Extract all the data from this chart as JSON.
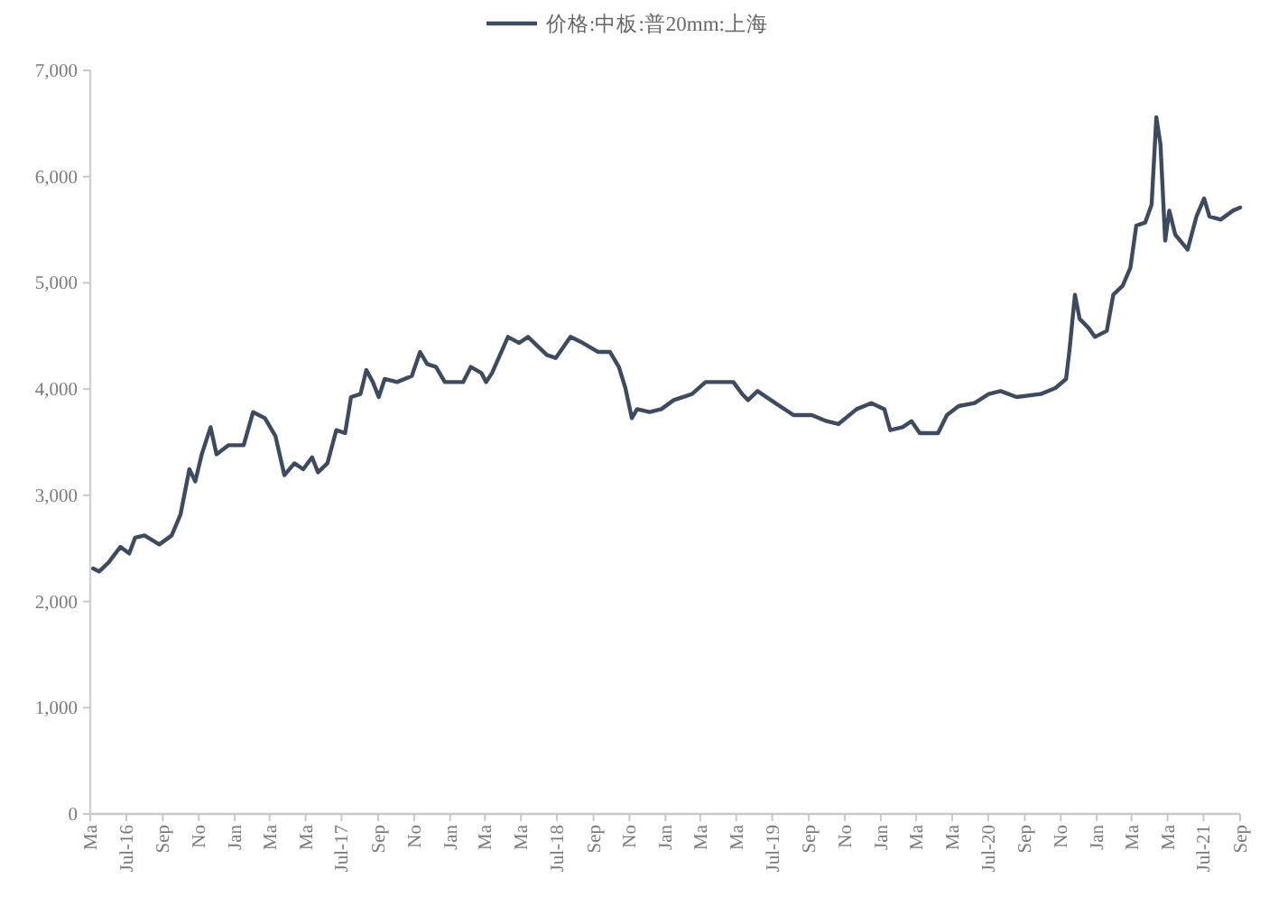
{
  "chart_data": {
    "type": "line",
    "legend": "top",
    "marker": "none",
    "line_style": "solid",
    "grid": false,
    "xlim": [
      "2016-05-01",
      "2021-09-01"
    ],
    "ylim": [
      0,
      7000
    ],
    "yticks": [
      {
        "value": 0,
        "label": "0"
      },
      {
        "value": 1000,
        "label": "1,000"
      },
      {
        "value": 2000,
        "label": "2,000"
      },
      {
        "value": 3000,
        "label": "3,000"
      },
      {
        "value": 4000,
        "label": "4,000"
      },
      {
        "value": 5000,
        "label": "5,000"
      },
      {
        "value": 6000,
        "label": "6,000"
      },
      {
        "value": 7000,
        "label": "7,000"
      }
    ],
    "xticks": [
      {
        "value": "2016-05-01",
        "label": "Ma"
      },
      {
        "value": "2016-07-01",
        "label": "Jul-16"
      },
      {
        "value": "2016-09-01",
        "label": "Sep"
      },
      {
        "value": "2016-11-01",
        "label": "No"
      },
      {
        "value": "2017-01-01",
        "label": "Jan"
      },
      {
        "value": "2017-03-01",
        "label": "Ma"
      },
      {
        "value": "2017-05-01",
        "label": "Ma"
      },
      {
        "value": "2017-07-01",
        "label": "Jul-17"
      },
      {
        "value": "2017-09-01",
        "label": "Sep"
      },
      {
        "value": "2017-11-01",
        "label": "No"
      },
      {
        "value": "2018-01-01",
        "label": "Jan"
      },
      {
        "value": "2018-03-01",
        "label": "Ma"
      },
      {
        "value": "2018-05-01",
        "label": "Ma"
      },
      {
        "value": "2018-07-01",
        "label": "Jul-18"
      },
      {
        "value": "2018-09-01",
        "label": "Sep"
      },
      {
        "value": "2018-11-01",
        "label": "No"
      },
      {
        "value": "2019-01-01",
        "label": "Jan"
      },
      {
        "value": "2019-03-01",
        "label": "Ma"
      },
      {
        "value": "2019-05-01",
        "label": "Ma"
      },
      {
        "value": "2019-07-01",
        "label": "Jul-19"
      },
      {
        "value": "2019-09-01",
        "label": "Sep"
      },
      {
        "value": "2019-11-01",
        "label": "No"
      },
      {
        "value": "2020-01-01",
        "label": "Jan"
      },
      {
        "value": "2020-03-01",
        "label": "Ma"
      },
      {
        "value": "2020-05-01",
        "label": "Ma"
      },
      {
        "value": "2020-07-01",
        "label": "Jul-20"
      },
      {
        "value": "2020-09-01",
        "label": "Sep"
      },
      {
        "value": "2020-11-01",
        "label": "No"
      },
      {
        "value": "2021-01-01",
        "label": "Jan"
      },
      {
        "value": "2021-03-01",
        "label": "Ma"
      },
      {
        "value": "2021-05-01",
        "label": "Ma"
      },
      {
        "value": "2021-07-01",
        "label": "Jul-21"
      },
      {
        "value": "2021-09-01",
        "label": "Sep"
      }
    ],
    "series": [
      {
        "name": "价格:中板:普20mm:上海",
        "color": "#3d4b60",
        "x": [
          "2016-05-06",
          "2016-05-16",
          "2016-06-01",
          "2016-06-21",
          "2016-07-06",
          "2016-07-16",
          "2016-08-01",
          "2016-08-26",
          "2016-09-16",
          "2016-10-01",
          "2016-10-16",
          "2016-10-26",
          "2016-11-06",
          "2016-11-21",
          "2016-12-01",
          "2016-12-21",
          "2017-01-16",
          "2017-02-01",
          "2017-02-21",
          "2017-03-11",
          "2017-03-26",
          "2017-04-12",
          "2017-04-27",
          "2017-05-12",
          "2017-05-22",
          "2017-06-07",
          "2017-06-22",
          "2017-07-07",
          "2017-07-17",
          "2017-08-02",
          "2017-08-12",
          "2017-08-23",
          "2017-09-02",
          "2017-09-12",
          "2017-10-03",
          "2017-10-28",
          "2017-11-11",
          "2017-11-23",
          "2017-12-08",
          "2017-12-23",
          "2018-01-23",
          "2018-02-05",
          "2018-02-23",
          "2018-03-03",
          "2018-03-13",
          "2018-04-09",
          "2018-04-28",
          "2018-05-13",
          "2018-06-14",
          "2018-06-29",
          "2018-07-24",
          "2018-08-14",
          "2018-09-09",
          "2018-09-29",
          "2018-10-14",
          "2018-10-25",
          "2018-11-05",
          "2018-11-14",
          "2018-12-05",
          "2018-12-25",
          "2019-01-15",
          "2019-02-15",
          "2019-03-10",
          "2019-04-26",
          "2019-05-11",
          "2019-05-21",
          "2019-06-06",
          "2019-07-06",
          "2019-08-06",
          "2019-09-06",
          "2019-10-01",
          "2019-10-21",
          "2019-11-21",
          "2019-12-16",
          "2020-01-07",
          "2020-01-17",
          "2020-02-07",
          "2020-02-22",
          "2020-03-07",
          "2020-04-07",
          "2020-04-22",
          "2020-05-12",
          "2020-06-08",
          "2020-07-02",
          "2020-07-22",
          "2020-08-18",
          "2020-09-28",
          "2020-10-23",
          "2020-11-10",
          "2020-11-16",
          "2020-11-25",
          "2020-12-03",
          "2020-12-18",
          "2020-12-29",
          "2021-01-18",
          "2021-01-29",
          "2021-02-14",
          "2021-02-27",
          "2021-03-09",
          "2021-03-24",
          "2021-04-04",
          "2021-04-12",
          "2021-04-19",
          "2021-04-27",
          "2021-05-04",
          "2021-05-14",
          "2021-06-04",
          "2021-06-19",
          "2021-07-02",
          "2021-07-11",
          "2021-07-30",
          "2021-08-20",
          "2021-09-01"
        ],
        "values": [
          2311,
          2282,
          2367,
          2514,
          2452,
          2600,
          2622,
          2537,
          2622,
          2820,
          3245,
          3131,
          3386,
          3641,
          3386,
          3471,
          3471,
          3783,
          3726,
          3556,
          3189,
          3301,
          3245,
          3358,
          3216,
          3301,
          3613,
          3585,
          3925,
          3953,
          4179,
          4066,
          3925,
          4095,
          4066,
          4123,
          4349,
          4236,
          4208,
          4066,
          4066,
          4208,
          4151,
          4066,
          4151,
          4491,
          4434,
          4491,
          4321,
          4293,
          4491,
          4434,
          4349,
          4349,
          4208,
          4010,
          3726,
          3811,
          3783,
          3811,
          3896,
          3953,
          4066,
          4066,
          3953,
          3896,
          3981,
          3868,
          3755,
          3755,
          3698,
          3670,
          3811,
          3868,
          3811,
          3613,
          3641,
          3698,
          3585,
          3585,
          3755,
          3840,
          3868,
          3953,
          3981,
          3925,
          3953,
          4010,
          4095,
          4378,
          4888,
          4661,
          4576,
          4491,
          4548,
          4888,
          4973,
          5143,
          5539,
          5567,
          5737,
          6558,
          6303,
          5398,
          5680,
          5454,
          5313,
          5624,
          5794,
          5624,
          5595,
          5680,
          5709
        ]
      }
    ]
  }
}
